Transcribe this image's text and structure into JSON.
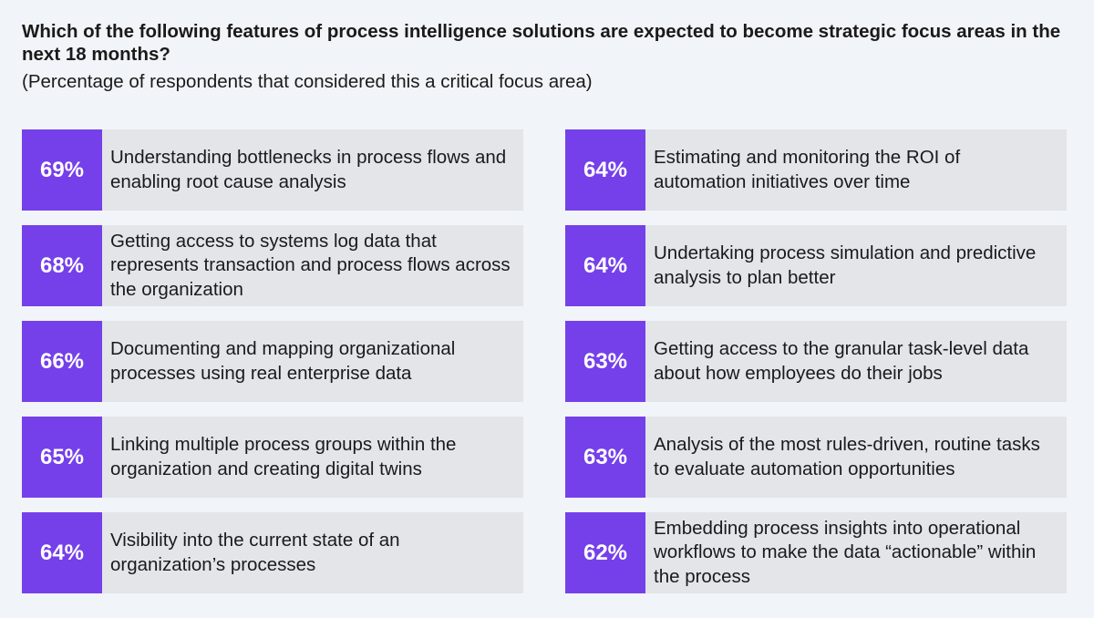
{
  "chart_data": {
    "type": "table",
    "title": "Which of the following features of process intelligence solutions are expected to become strategic focus areas in the next 18 months?",
    "subtitle": "(Percentage of respondents that considered this a critical focus area)",
    "items": [
      {
        "value": 69,
        "display": "69%",
        "label": "Understanding bottlenecks in process flows and enabling root cause analysis"
      },
      {
        "value": 68,
        "display": "68%",
        "label": "Getting access to systems log data that represents transaction and process flows across the organization"
      },
      {
        "value": 66,
        "display": "66%",
        "label": "Documenting and mapping organizational processes using real enterprise data"
      },
      {
        "value": 65,
        "display": "65%",
        "label": "Linking multiple process groups within the organization and creating digital twins"
      },
      {
        "value": 64,
        "display": "64%",
        "label": "Visibility into the current state of an organization’s processes"
      },
      {
        "value": 64,
        "display": "64%",
        "label": "Estimating and monitoring the ROI of automation initiatives over time"
      },
      {
        "value": 64,
        "display": "64%",
        "label": "Undertaking process simulation and predictive analysis to plan better"
      },
      {
        "value": 63,
        "display": "63%",
        "label": "Getting access to the granular task-level data about how employees do their jobs"
      },
      {
        "value": 63,
        "display": "63%",
        "label": "Analysis of the most rules-driven, routine tasks to evaluate automation opportunities"
      },
      {
        "value": 62,
        "display": "62%",
        "label": "Embedding process insights into operational workflows to make the data “actionable” within the process"
      }
    ]
  },
  "colors": {
    "accent": "#7540ea",
    "card_background": "#e3e5e9",
    "page_background": "#f1f4f8"
  }
}
